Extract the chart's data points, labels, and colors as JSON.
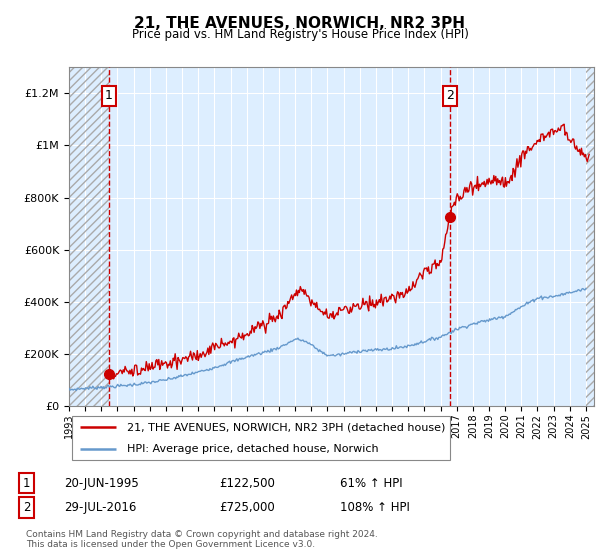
{
  "title": "21, THE AVENUES, NORWICH, NR2 3PH",
  "subtitle": "Price paid vs. HM Land Registry's House Price Index (HPI)",
  "legend_line1": "21, THE AVENUES, NORWICH, NR2 3PH (detached house)",
  "legend_line2": "HPI: Average price, detached house, Norwich",
  "annotation1_label": "1",
  "annotation1_date": "20-JUN-1995",
  "annotation1_price": "£122,500",
  "annotation1_hpi": "61% ↑ HPI",
  "annotation2_label": "2",
  "annotation2_date": "29-JUL-2016",
  "annotation2_price": "£725,000",
  "annotation2_hpi": "108% ↑ HPI",
  "footer": "Contains HM Land Registry data © Crown copyright and database right 2024.\nThis data is licensed under the Open Government Licence v3.0.",
  "red_color": "#cc0000",
  "blue_color": "#6699cc",
  "bg_color": "#ddeeff",
  "ylim": [
    0,
    1300000
  ],
  "xlim_start": 1993.0,
  "xlim_end": 2025.5,
  "sale1_year": 1995.46,
  "sale1_price": 122500,
  "sale2_year": 2016.57,
  "sale2_price": 725000,
  "hatch_right_start": 2025.0
}
